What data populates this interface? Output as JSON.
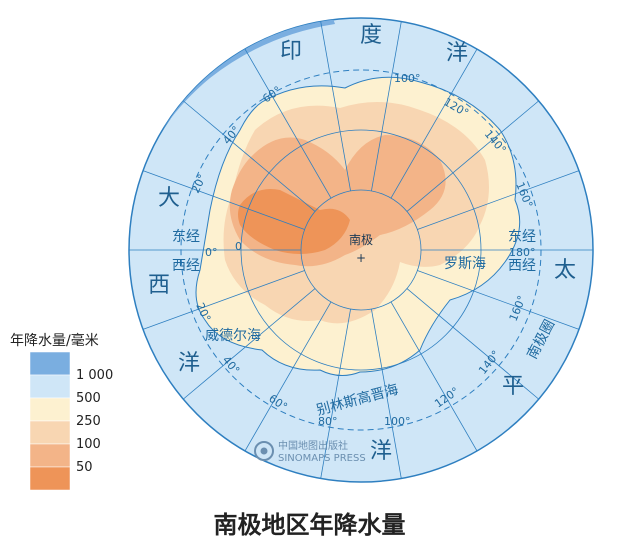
{
  "title": "南极地区年降水量",
  "legend": {
    "title": "年降水量/毫米",
    "classes": [
      {
        "color": "#7aaee0"
      },
      {
        "color": "#cfe6f7"
      },
      {
        "color": "#fdf1d0"
      },
      {
        "color": "#f8d6b2"
      },
      {
        "color": "#f3b488"
      },
      {
        "color": "#ee9458"
      }
    ],
    "breaks": [
      "1 000",
      "500",
      "250",
      "100",
      "50"
    ]
  },
  "oceans": {
    "indian_1": "印",
    "indian_2": "度",
    "indian_3": "洋",
    "atlantic_1": "大",
    "atlantic_2": "西",
    "atlantic_3": "洋",
    "pacific_1": "太",
    "pacific_2": "平",
    "pacific_3": "洋"
  },
  "seas": {
    "ross": "罗斯海",
    "weddell": "威德尔海",
    "bellingshausen": "别林斯高晋海"
  },
  "polar_circle": "南极圈",
  "pole": "南极",
  "longitudes": {
    "east_label": "东经",
    "west_label": "西经",
    "zero": "0°",
    "zero_plain": "0",
    "e20": "20°",
    "e40": "40°",
    "e60": "60°",
    "e100": "100°",
    "e120": "120°",
    "e140": "140°",
    "e160": "160°",
    "e180": "180°",
    "w20": "20°",
    "w40": "40°",
    "w60": "60°",
    "w80": "80°",
    "w100": "100°",
    "w120": "120°",
    "w140": "140°",
    "w160": "160°"
  },
  "watermark": {
    "cn": "中国地图出版社",
    "en": "SINOMAPS PRESS"
  }
}
